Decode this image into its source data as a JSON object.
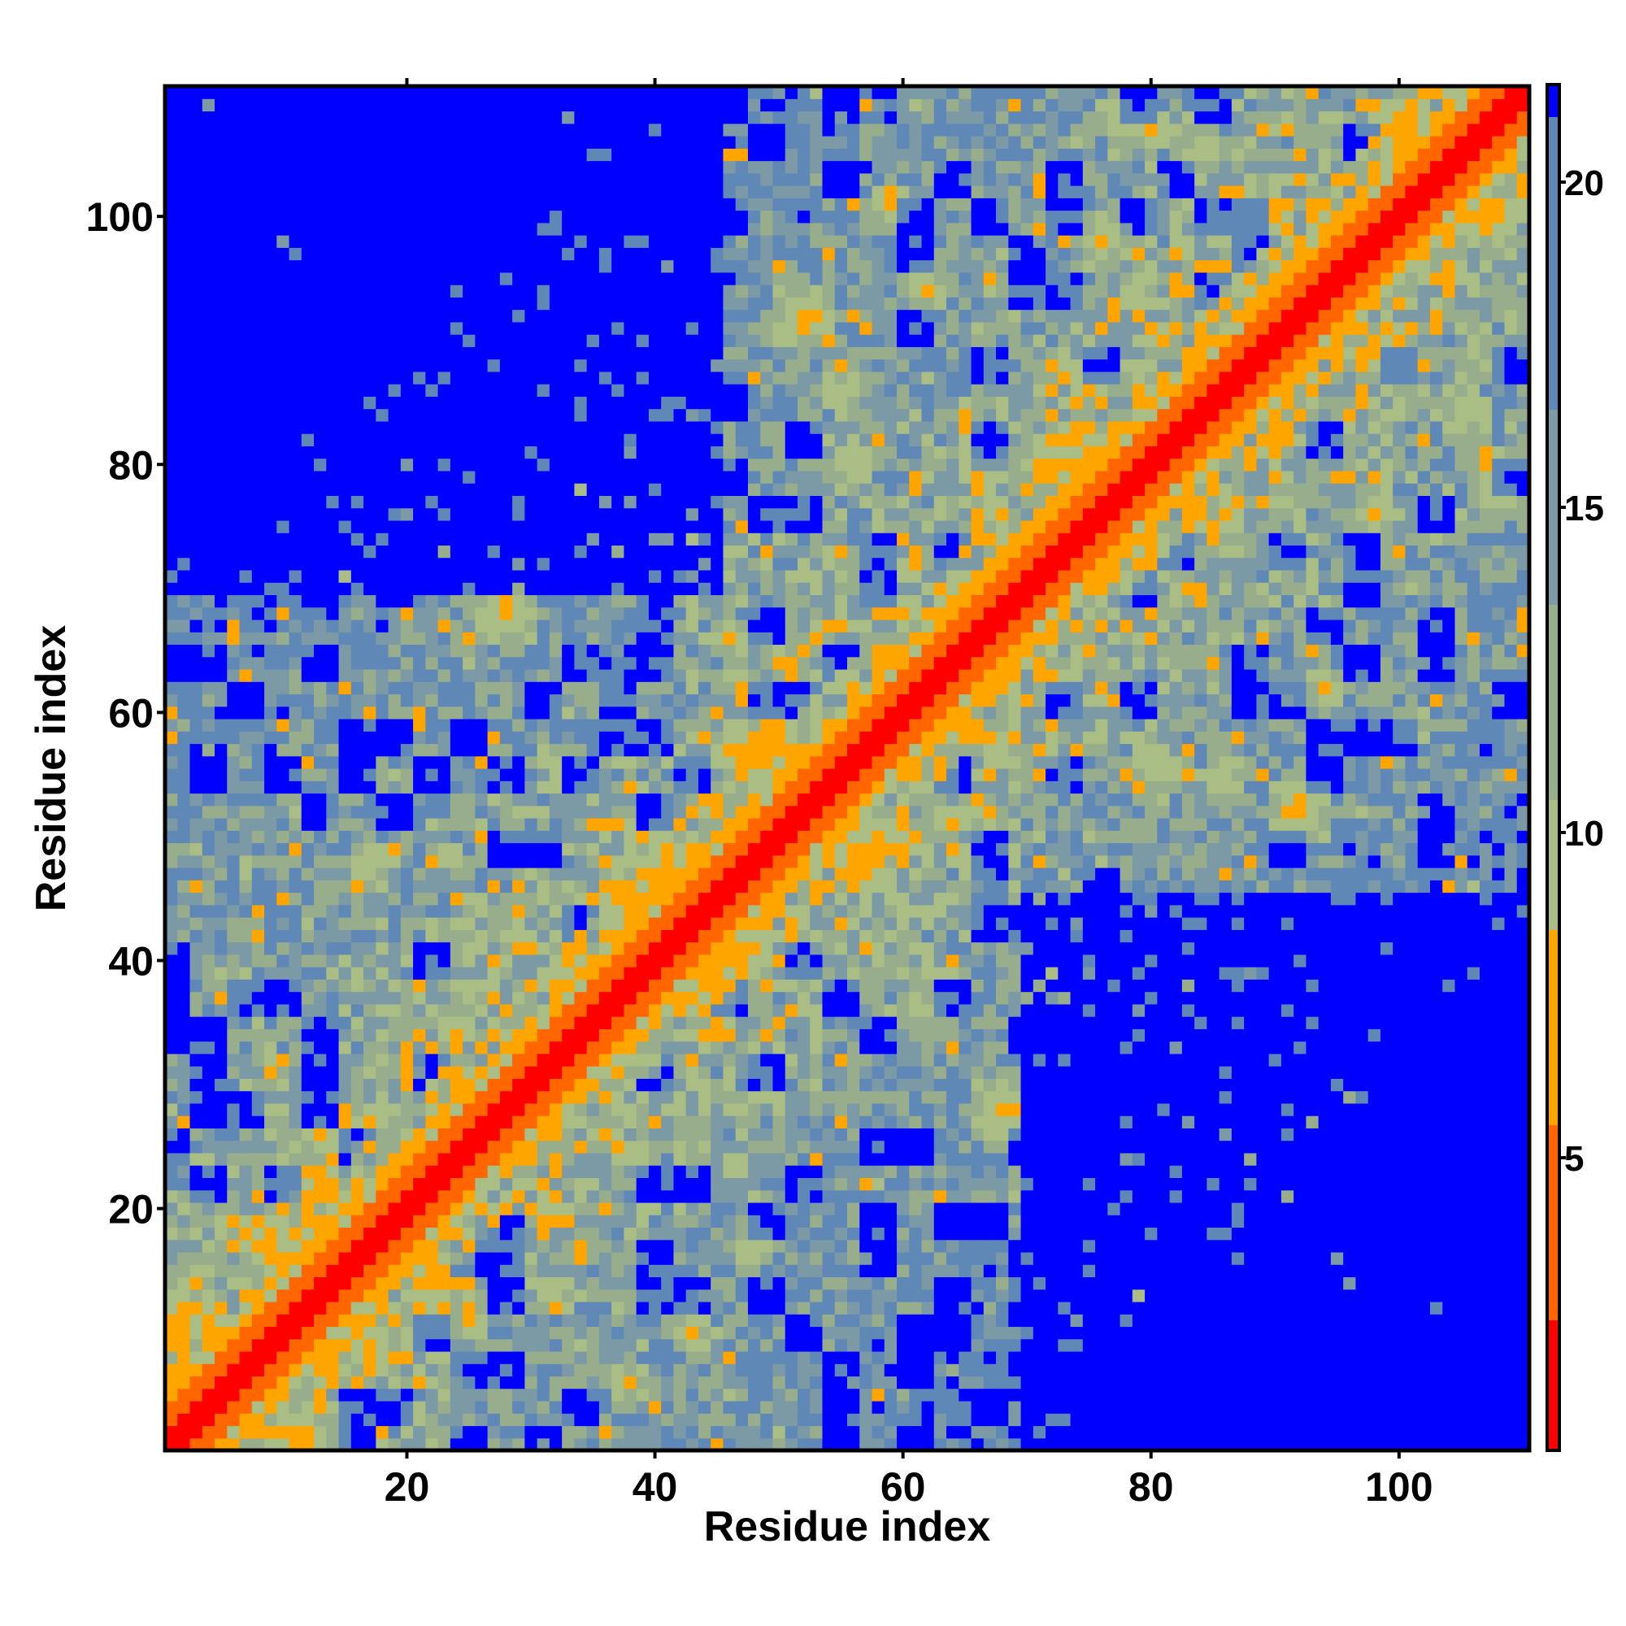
{
  "chart_data": {
    "type": "heatmap",
    "title": "",
    "xlabel": "Residue index",
    "ylabel": "Residue index",
    "n_residues": 110,
    "xlim": [
      1,
      110
    ],
    "ylim": [
      1,
      110
    ],
    "x_ticks": [
      20,
      40,
      60,
      80,
      100
    ],
    "y_ticks": [
      20,
      40,
      60,
      80,
      100
    ],
    "x_tick_labels": [
      "20",
      "40",
      "60",
      "80",
      "100"
    ],
    "y_tick_labels": [
      "20",
      "40",
      "60",
      "80",
      "100"
    ],
    "colorbar": {
      "range": [
        0.5,
        21.5
      ],
      "ticks": [
        5,
        10,
        15,
        20
      ],
      "tick_labels": [
        "5",
        "10",
        "15",
        "20"
      ],
      "colors": [
        {
          "max": 2.5,
          "color": "#ff0000"
        },
        {
          "max": 5.5,
          "color": "#ff6600"
        },
        {
          "max": 8.5,
          "color": "#ffa500"
        },
        {
          "max": 10.5,
          "color": "#a9bd84"
        },
        {
          "max": 13.5,
          "color": "#98ad8c"
        },
        {
          "max": 16.5,
          "color": "#7c99a6"
        },
        {
          "max": 21.0,
          "color": "#5f88b7"
        },
        {
          "max": 100,
          "color": "#0000ff"
        }
      ]
    },
    "contact_clusters": [
      {
        "i": 2,
        "j": 11,
        "r": 4,
        "d": 5
      },
      {
        "i": 9,
        "j": 17,
        "r": 3,
        "d": 6
      },
      {
        "i": 12,
        "j": 22,
        "r": 3,
        "d": 6
      },
      {
        "i": 17,
        "j": 48,
        "r": 2,
        "d": 7
      },
      {
        "i": 10,
        "j": 43,
        "r": 2,
        "d": 7
      },
      {
        "i": 6,
        "j": 38,
        "r": 2,
        "d": 7
      },
      {
        "i": 38,
        "j": 45,
        "r": 3,
        "d": 5
      },
      {
        "i": 40,
        "j": 47,
        "r": 3,
        "d": 5
      },
      {
        "i": 28,
        "j": 68,
        "r": 3,
        "d": 6
      },
      {
        "i": 36,
        "j": 62,
        "r": 3,
        "d": 7
      },
      {
        "i": 39,
        "j": 72,
        "r": 3,
        "d": 6
      },
      {
        "i": 46,
        "j": 66,
        "r": 2,
        "d": 7
      },
      {
        "i": 48,
        "j": 57,
        "r": 3,
        "d": 5
      },
      {
        "i": 50,
        "j": 58,
        "r": 2,
        "d": 6
      },
      {
        "i": 52,
        "j": 92,
        "r": 3,
        "d": 6
      },
      {
        "i": 55,
        "j": 86,
        "r": 2,
        "d": 7
      },
      {
        "i": 56,
        "j": 80,
        "r": 2,
        "d": 7
      },
      {
        "i": 62,
        "j": 94,
        "r": 2,
        "d": 7
      },
      {
        "i": 59,
        "j": 101,
        "r": 2,
        "d": 7
      },
      {
        "i": 73,
        "j": 80,
        "r": 3,
        "d": 5
      },
      {
        "i": 76,
        "j": 98,
        "r": 2,
        "d": 7
      },
      {
        "i": 80,
        "j": 107,
        "r": 2,
        "d": 7
      },
      {
        "i": 84,
        "j": 105,
        "r": 2,
        "d": 7
      },
      {
        "i": 100,
        "j": 107,
        "r": 3,
        "d": 5
      },
      {
        "i": 77,
        "j": 108,
        "r": 2,
        "d": 7
      },
      {
        "i": 88,
        "j": 100,
        "r": 2,
        "d": 7
      }
    ],
    "sparse_regions": [
      {
        "x_range": [
          70,
          110
        ],
        "y_range": [
          1,
          45
        ]
      },
      {
        "x_range": [
          1,
          45
        ],
        "y_range": [
          70,
          110
        ]
      }
    ]
  }
}
